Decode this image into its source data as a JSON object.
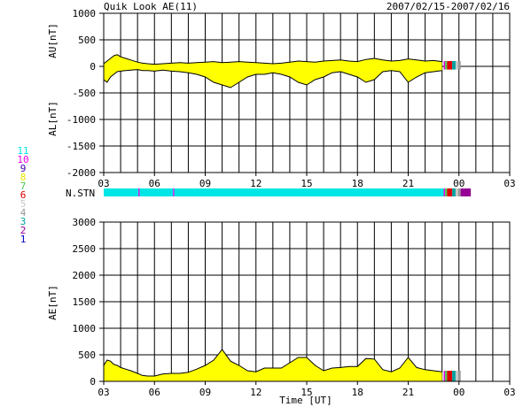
{
  "header": {
    "title": "Quik Look AE(11)",
    "date_range": "2007/02/15-2007/02/16"
  },
  "stations": {
    "label": "N.STN",
    "legend": [
      {
        "num": "11",
        "color": "#00e5e5"
      },
      {
        "num": "10",
        "color": "#e500e5"
      },
      {
        "num": "9",
        "color": "#3a00b0"
      },
      {
        "num": "8",
        "color": "#e6e600"
      },
      {
        "num": "7",
        "color": "#50c850"
      },
      {
        "num": "6",
        "color": "#e00000"
      },
      {
        "num": "5",
        "color": "#c8c8c8"
      },
      {
        "num": "4",
        "color": "#969696"
      },
      {
        "num": "3",
        "color": "#00a0a0"
      },
      {
        "num": "2",
        "color": "#960096"
      },
      {
        "num": "1",
        "color": "#0000c8"
      }
    ],
    "segments": [
      {
        "start": 0.0,
        "end": 2.05,
        "n": 11
      },
      {
        "start": 2.05,
        "end": 2.12,
        "n": 10
      },
      {
        "start": 2.12,
        "end": 4.1,
        "n": 11
      },
      {
        "start": 4.1,
        "end": 4.17,
        "n": 10
      },
      {
        "start": 4.17,
        "end": 20.1,
        "n": 11
      },
      {
        "start": 20.1,
        "end": 20.18,
        "n": 10
      },
      {
        "start": 20.18,
        "end": 20.3,
        "n": 7
      },
      {
        "start": 20.3,
        "end": 20.6,
        "n": 6
      },
      {
        "start": 20.6,
        "end": 20.8,
        "n": 3
      },
      {
        "start": 20.8,
        "end": 20.95,
        "n": 5
      },
      {
        "start": 20.95,
        "end": 21.1,
        "n": 4
      },
      {
        "start": 21.1,
        "end": 21.7,
        "n": 2
      }
    ]
  },
  "chart_data": [
    {
      "type": "area",
      "ylabel": "AU[nT]",
      "xlabel": "",
      "x_ticks": [
        "03",
        "06",
        "09",
        "12",
        "15",
        "18",
        "21",
        "00",
        "03"
      ],
      "xlim": [
        0,
        24
      ],
      "ylim": [
        -2000,
        1000
      ],
      "y_ticks": [
        1000,
        500,
        0,
        -500,
        -1000,
        -1500,
        -2000
      ],
      "grid": true,
      "fill_color": "#ffff00",
      "x": [
        0,
        0.2,
        0.4,
        0.6,
        0.8,
        1.0,
        1.3,
        1.6,
        2.0,
        2.3,
        2.6,
        3.0,
        3.5,
        4.0,
        4.5,
        5.0,
        5.5,
        6.0,
        6.5,
        7.0,
        7.5,
        8.0,
        8.5,
        9.0,
        9.5,
        10.0,
        10.5,
        11.0,
        11.5,
        12.0,
        12.5,
        13.0,
        13.5,
        14.0,
        14.5,
        15.0,
        15.5,
        16.0,
        16.5,
        17.0,
        17.5,
        18.0,
        18.5,
        19.0,
        19.5,
        20.0
      ],
      "series": [
        {
          "values": [
            50,
            100,
            150,
            200,
            220,
            180,
            150,
            120,
            80,
            60,
            50,
            40,
            50,
            60,
            70,
            60,
            70,
            80,
            90,
            70,
            80,
            90,
            80,
            70,
            60,
            50,
            60,
            80,
            100,
            90,
            80,
            100,
            110,
            120,
            100,
            90,
            130,
            150,
            120,
            100,
            110,
            140,
            120,
            100,
            110,
            90
          ]
        },
        {
          "values": [
            -250,
            -300,
            -200,
            -150,
            -100,
            -90,
            -80,
            -70,
            -60,
            -80,
            -80,
            -90,
            -70,
            -90,
            -100,
            -120,
            -150,
            -200,
            -300,
            -350,
            -400,
            -300,
            -200,
            -150,
            -150,
            -120,
            -150,
            -200,
            -300,
            -350,
            -250,
            -200,
            -120,
            -100,
            -150,
            -200,
            -300,
            -250,
            -100,
            -80,
            -100,
            -300,
            -200,
            -120,
            -100,
            -80
          ]
        }
      ]
    },
    {
      "type": "area",
      "ylabel": "AE[nT]",
      "xlabel": "Time [UT]",
      "x_ticks": [
        "03",
        "06",
        "09",
        "12",
        "15",
        "18",
        "21",
        "00",
        "03"
      ],
      "xlim": [
        0,
        24
      ],
      "ylim": [
        0,
        3000
      ],
      "y_ticks": [
        3000,
        2500,
        2000,
        1500,
        1000,
        500,
        0
      ],
      "grid": true,
      "fill_color": "#ffff00",
      "x": [
        0,
        0.2,
        0.4,
        0.6,
        0.8,
        1.0,
        1.3,
        1.6,
        2.0,
        2.3,
        2.6,
        3.0,
        3.5,
        4.0,
        4.5,
        5.0,
        5.5,
        6.0,
        6.5,
        7.0,
        7.5,
        8.0,
        8.5,
        9.0,
        9.5,
        10.0,
        10.5,
        11.0,
        11.5,
        12.0,
        12.5,
        13.0,
        13.5,
        14.0,
        14.5,
        15.0,
        15.5,
        16.0,
        16.5,
        17.0,
        17.5,
        18.0,
        18.5,
        19.0,
        19.5,
        20.0
      ],
      "values": [
        300,
        400,
        380,
        320,
        300,
        260,
        230,
        200,
        150,
        110,
        100,
        100,
        140,
        150,
        150,
        170,
        230,
        300,
        400,
        600,
        380,
        300,
        200,
        180,
        250,
        250,
        250,
        350,
        450,
        450,
        300,
        200,
        250,
        260,
        280,
        280,
        430,
        420,
        220,
        180,
        250,
        450,
        260,
        220,
        200,
        180
      ]
    }
  ]
}
